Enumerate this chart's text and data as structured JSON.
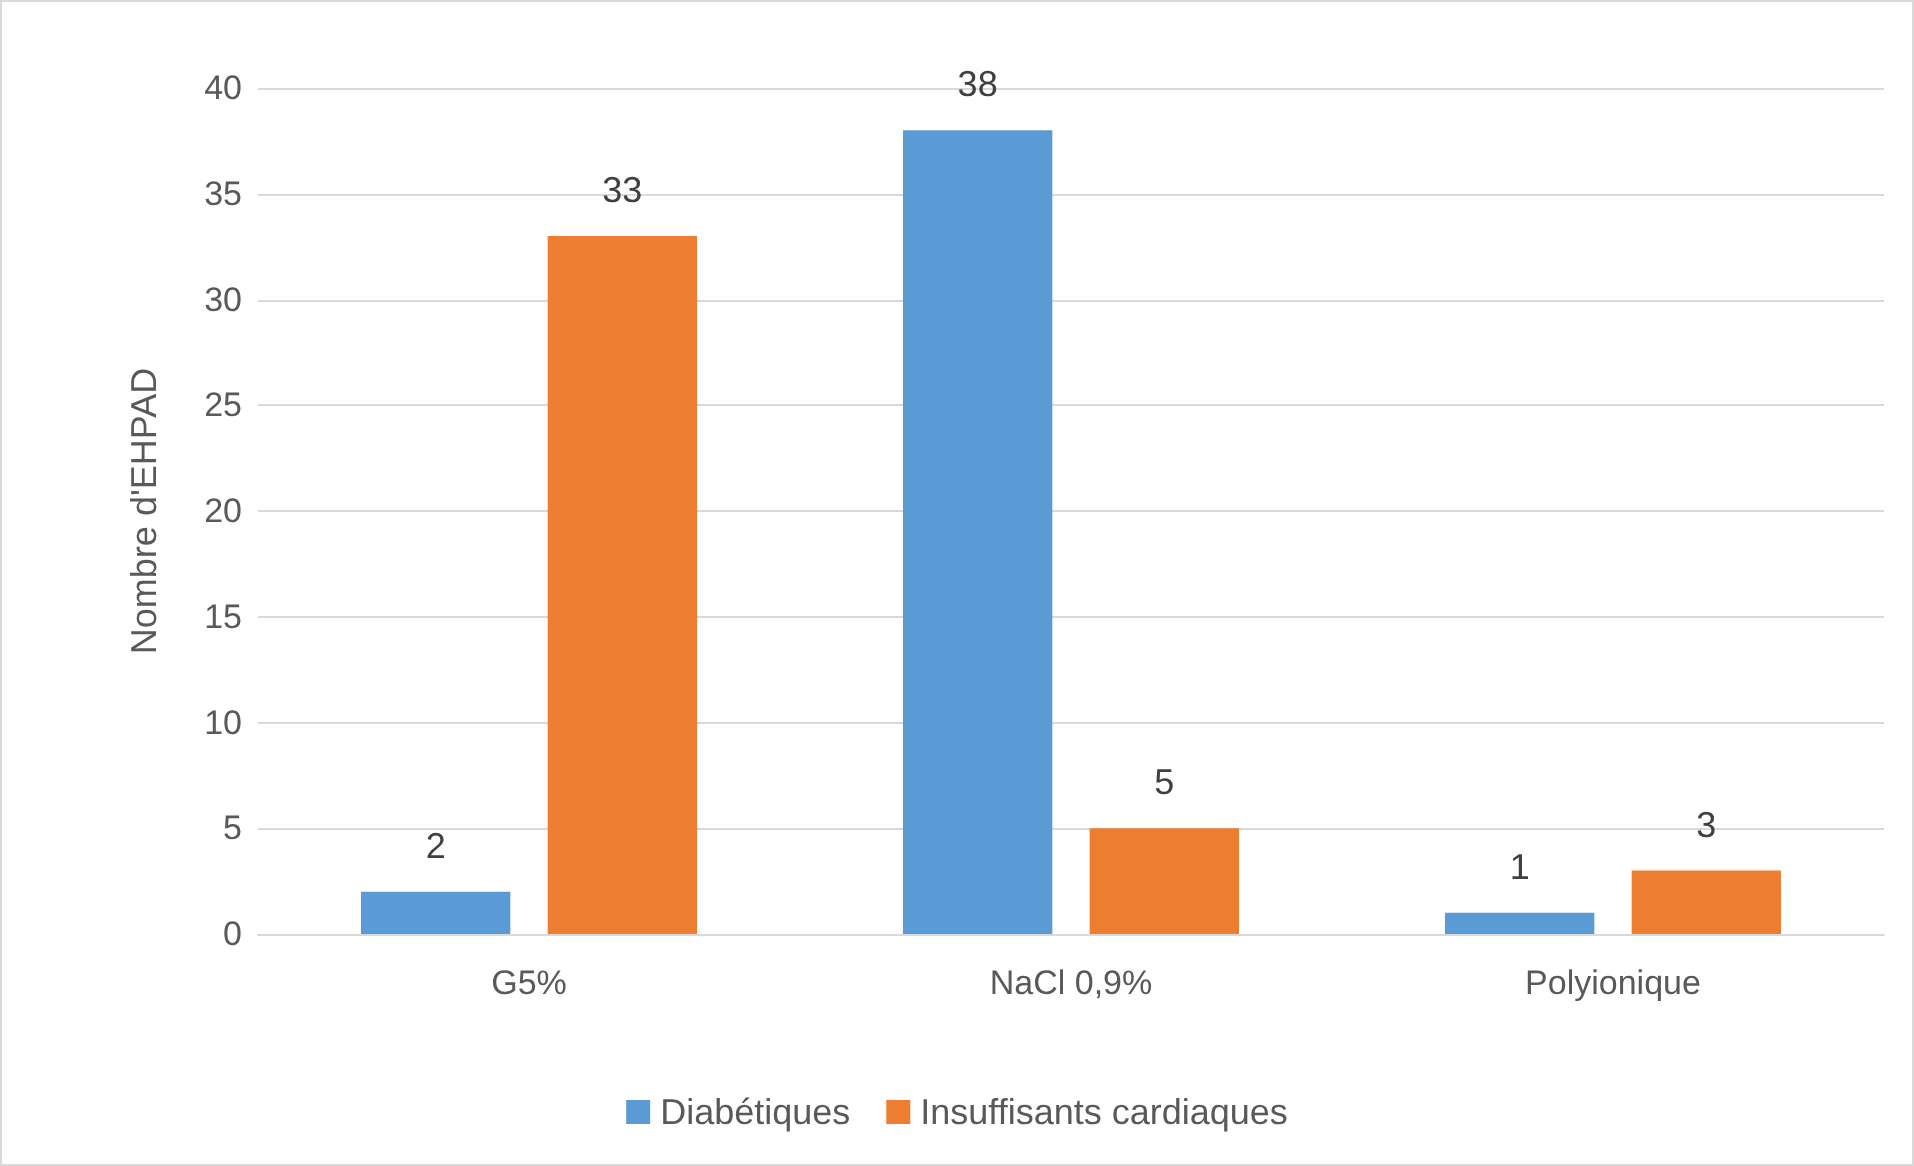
{
  "chart_data": {
    "type": "bar",
    "ylabel": "Nombre d'EHPAD",
    "categories": [
      "G5%",
      "NaCl 0,9%",
      "Polyionique"
    ],
    "series": [
      {
        "name": "Diabétiques",
        "color": "#5b9bd5",
        "values": [
          2,
          38,
          1
        ]
      },
      {
        "name": "Insuffisants cardiaques",
        "color": "#ed7d31",
        "values": [
          33,
          5,
          3
        ]
      }
    ],
    "ylim": [
      0,
      40
    ],
    "yticks": [
      0,
      5,
      10,
      15,
      20,
      25,
      30,
      35,
      40
    ],
    "grid": "y",
    "legend": "bottom",
    "data_labels": true
  }
}
